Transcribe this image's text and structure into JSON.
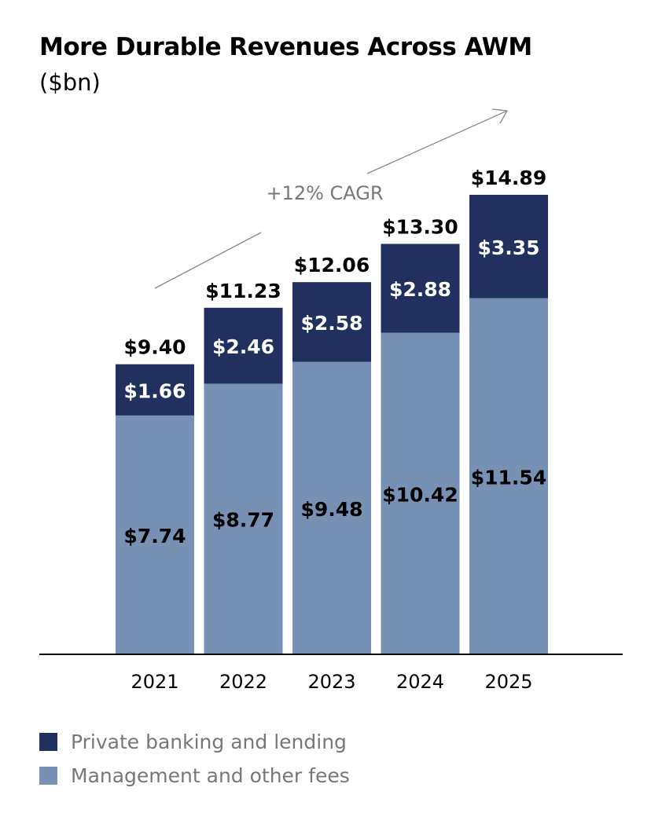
{
  "chart_data": {
    "type": "bar",
    "stacked": true,
    "title": "More Durable Revenues Across AWM",
    "subtitle": "($bn)",
    "categories": [
      "2021",
      "2022",
      "2023",
      "2024",
      "2025"
    ],
    "series": [
      {
        "name": "Management and other fees",
        "color": "#7691b3",
        "values": [
          7.74,
          8.77,
          9.48,
          10.42,
          11.54
        ],
        "labels": [
          "$7.74",
          "$8.77",
          "$9.48",
          "$10.42",
          "$11.54"
        ]
      },
      {
        "name": "Private banking and lending",
        "color": "#21305f",
        "values": [
          1.66,
          2.46,
          2.58,
          2.88,
          3.35
        ],
        "labels": [
          "$1.66",
          "$2.46",
          "$2.58",
          "$2.88",
          "$3.35"
        ]
      }
    ],
    "totals": [
      9.4,
      11.23,
      12.06,
      13.3,
      14.89
    ],
    "total_labels": [
      "$9.40",
      "$11.23",
      "$12.06",
      "$13.30",
      "$14.89"
    ],
    "annotation": "+12% CAGR",
    "ylim": [
      0,
      14.89
    ],
    "grid": false,
    "legend_position": "bottom-left",
    "legend_order": [
      "Private banking and lending",
      "Management and other fees"
    ]
  }
}
